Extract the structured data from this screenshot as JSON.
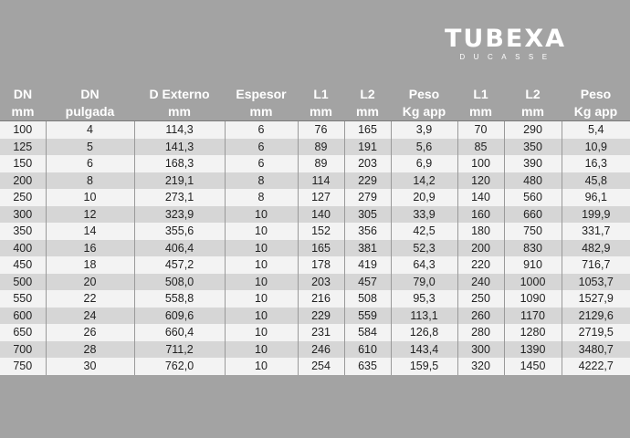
{
  "logo": {
    "main": "TUBEXA",
    "sub": "DUCASSE"
  },
  "headers": [
    [
      "DN",
      "mm"
    ],
    [
      "DN",
      "pulgada"
    ],
    [
      "D Externo",
      "mm"
    ],
    [
      "Espesor",
      "mm"
    ],
    [
      "L1",
      "mm"
    ],
    [
      "L2",
      "mm"
    ],
    [
      "Peso",
      "Kg app"
    ],
    [
      "L1",
      "mm"
    ],
    [
      "L2",
      "mm"
    ],
    [
      "Peso",
      "Kg app"
    ]
  ],
  "rows": [
    [
      "100",
      "4",
      "114,3",
      "6",
      "76",
      "165",
      "3,9",
      "70",
      "290",
      "5,4"
    ],
    [
      "125",
      "5",
      "141,3",
      "6",
      "89",
      "191",
      "5,6",
      "85",
      "350",
      "10,9"
    ],
    [
      "150",
      "6",
      "168,3",
      "6",
      "89",
      "203",
      "6,9",
      "100",
      "390",
      "16,3"
    ],
    [
      "200",
      "8",
      "219,1",
      "8",
      "114",
      "229",
      "14,2",
      "120",
      "480",
      "45,8"
    ],
    [
      "250",
      "10",
      "273,1",
      "8",
      "127",
      "279",
      "20,9",
      "140",
      "560",
      "96,1"
    ],
    [
      "300",
      "12",
      "323,9",
      "10",
      "140",
      "305",
      "33,9",
      "160",
      "660",
      "199,9"
    ],
    [
      "350",
      "14",
      "355,6",
      "10",
      "152",
      "356",
      "42,5",
      "180",
      "750",
      "331,7"
    ],
    [
      "400",
      "16",
      "406,4",
      "10",
      "165",
      "381",
      "52,3",
      "200",
      "830",
      "482,9"
    ],
    [
      "450",
      "18",
      "457,2",
      "10",
      "178",
      "419",
      "64,3",
      "220",
      "910",
      "716,7"
    ],
    [
      "500",
      "20",
      "508,0",
      "10",
      "203",
      "457",
      "79,0",
      "240",
      "1000",
      "1053,7"
    ],
    [
      "550",
      "22",
      "558,8",
      "10",
      "216",
      "508",
      "95,3",
      "250",
      "1090",
      "1527,9"
    ],
    [
      "600",
      "24",
      "609,6",
      "10",
      "229",
      "559",
      "113,1",
      "260",
      "1170",
      "2129,6"
    ],
    [
      "650",
      "26",
      "660,4",
      "10",
      "231",
      "584",
      "126,8",
      "280",
      "1280",
      "2719,5"
    ],
    [
      "700",
      "28",
      "711,2",
      "10",
      "246",
      "610",
      "143,4",
      "300",
      "1390",
      "3480,7"
    ],
    [
      "750",
      "30",
      "762,0",
      "10",
      "254",
      "635",
      "159,5",
      "320",
      "1450",
      "4222,7"
    ]
  ]
}
